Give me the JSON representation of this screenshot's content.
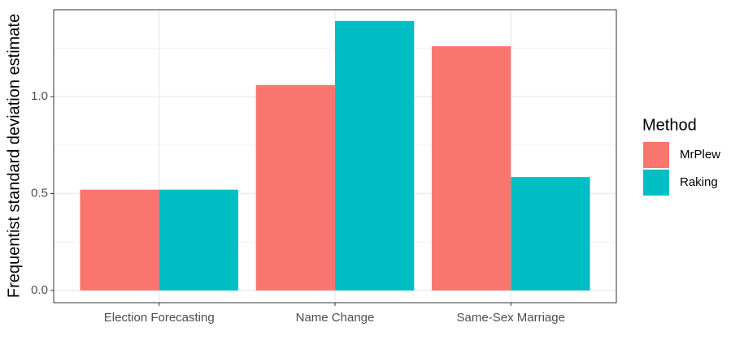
{
  "chart_data": {
    "type": "bar",
    "y_label": "Frequentist standard deviation estimate",
    "categories": [
      "Election Forecasting",
      "Name Change",
      "Same-Sex Marriage"
    ],
    "legend_title": "Method",
    "series": [
      {
        "name": "MrPlew",
        "color": "#f8766d",
        "values": [
          0.52,
          1.06,
          1.26
        ]
      },
      {
        "name": "Raking",
        "color": "#00bfc4",
        "values": [
          0.52,
          1.39,
          0.585
        ]
      }
    ],
    "ylim": [
      -0.063,
      1.448
    ],
    "yticks": [
      {
        "value": 0,
        "label": "0.0"
      },
      0.5,
      {
        "value": 1,
        "label": "1.0"
      }
    ],
    "grid": true,
    "legend": "right"
  }
}
